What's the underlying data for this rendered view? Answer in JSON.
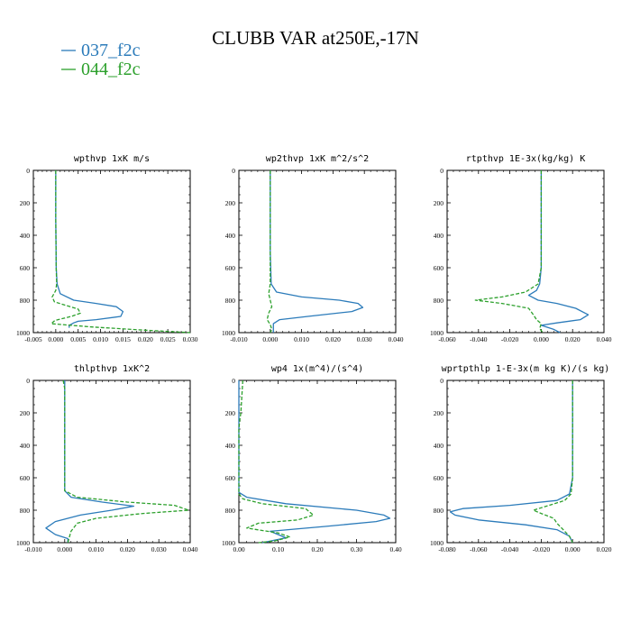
{
  "figure": {
    "title": "CLUBB VAR at250E,-17N",
    "legend": [
      {
        "label": "037_f2c",
        "color": "#2b7bba"
      },
      {
        "label": "044_f2c",
        "color": "#2ca02c"
      }
    ]
  },
  "chart_data": [
    {
      "type": "line",
      "title": "wpthvp  1xK m/s",
      "xlim": [
        -0.005,
        0.03
      ],
      "ylim": [
        1000,
        0
      ],
      "xticks": [
        "-0.005",
        "0.000",
        "0.005",
        "0.010",
        "0.015",
        "0.020",
        "0.025",
        "0.030"
      ],
      "yticks": [
        "0",
        "200",
        "400",
        "600",
        "800",
        "1000"
      ],
      "series": [
        {
          "name": "037_f2c",
          "color": "#2b7bba",
          "style": "solid",
          "x": [
            0.0,
            0.0,
            0.0001,
            0.0003,
            0.001,
            0.004,
            0.009,
            0.0135,
            0.015,
            0.0145,
            0.009,
            0.005,
            0.004,
            0.003,
            0.003
          ],
          "y": [
            0,
            300,
            600,
            700,
            760,
            800,
            820,
            840,
            870,
            900,
            920,
            930,
            940,
            955,
            970
          ]
        },
        {
          "name": "044_f2c",
          "color": "#2ca02c",
          "style": "dashed",
          "x": [
            0.0,
            0.0,
            0.0001,
            0.0002,
            0.0,
            -0.0008,
            -0.0003,
            0.002,
            0.005,
            0.0055,
            0.0035,
            -0.0002,
            -0.001,
            0.008,
            0.02,
            0.03
          ],
          "y": [
            0,
            300,
            600,
            700,
            740,
            780,
            810,
            830,
            855,
            880,
            900,
            925,
            945,
            965,
            985,
            1000
          ]
        }
      ]
    },
    {
      "type": "line",
      "title": "wp2thvp  1xK m^2/s^2",
      "xlim": [
        -0.01,
        0.04
      ],
      "ylim": [
        1000,
        0
      ],
      "xticks": [
        "-0.010",
        "0.000",
        "0.010",
        "0.020",
        "0.030",
        "0.040"
      ],
      "yticks": [
        "0",
        "200",
        "400",
        "600",
        "800",
        "1000"
      ],
      "series": [
        {
          "name": "037_f2c",
          "color": "#2b7bba",
          "style": "solid",
          "x": [
            0.0,
            0.0,
            0.0003,
            0.002,
            0.01,
            0.022,
            0.028,
            0.0295,
            0.026,
            0.012,
            0.003,
            0.001,
            0.001
          ],
          "y": [
            0,
            500,
            700,
            750,
            780,
            800,
            820,
            845,
            870,
            900,
            920,
            945,
            1000
          ]
        },
        {
          "name": "044_f2c",
          "color": "#2ca02c",
          "style": "dashed",
          "x": [
            0.0,
            0.0,
            0.0,
            -0.0005,
            0.0,
            0.0005,
            -0.0005,
            -0.001,
            0.0,
            0.0005,
            0.0
          ],
          "y": [
            0,
            500,
            700,
            760,
            800,
            840,
            880,
            920,
            950,
            980,
            1000
          ]
        }
      ]
    },
    {
      "type": "line",
      "title": "rtpthvp  1E-3x(kg/kg) K",
      "xlim": [
        -0.06,
        0.04
      ],
      "ylim": [
        1000,
        0
      ],
      "xticks": [
        "-0.060",
        "-0.040",
        "-0.020",
        "0.000",
        "0.020",
        "0.040"
      ],
      "yticks": [
        "0",
        "200",
        "400",
        "600",
        "800",
        "1000"
      ],
      "series": [
        {
          "name": "037_f2c",
          "color": "#2b7bba",
          "style": "solid",
          "x": [
            0.0,
            0.0,
            -0.001,
            -0.003,
            -0.008,
            -0.002,
            0.01,
            0.022,
            0.03,
            0.025,
            0.01,
            0.0,
            0.008,
            0.012
          ],
          "y": [
            0,
            600,
            700,
            740,
            770,
            800,
            820,
            850,
            890,
            920,
            940,
            955,
            980,
            1000
          ]
        },
        {
          "name": "044_f2c",
          "color": "#2ca02c",
          "style": "dashed",
          "x": [
            0.0,
            0.0,
            -0.002,
            -0.01,
            -0.025,
            -0.042,
            -0.025,
            -0.008,
            -0.005,
            -0.003,
            0.0,
            -0.001,
            0.001
          ],
          "y": [
            0,
            600,
            700,
            750,
            780,
            800,
            820,
            850,
            890,
            920,
            945,
            975,
            1000
          ]
        }
      ]
    },
    {
      "type": "line",
      "title": "thlpthvp  1xK^2",
      "xlim": [
        -0.01,
        0.04
      ],
      "ylim": [
        1000,
        0
      ],
      "xticks": [
        "-0.010",
        "0.000",
        "0.010",
        "0.020",
        "0.030",
        "0.040"
      ],
      "yticks": [
        "0",
        "200",
        "400",
        "600",
        "800",
        "1000"
      ],
      "series": [
        {
          "name": "037_f2c",
          "color": "#2b7bba",
          "style": "solid",
          "x": [
            0.0,
            0.0,
            0.0,
            0.002,
            0.012,
            0.022,
            0.015,
            0.005,
            -0.003,
            -0.006,
            -0.003,
            0.001,
            0.001
          ],
          "y": [
            0,
            50,
            680,
            720,
            750,
            775,
            800,
            830,
            870,
            910,
            950,
            975,
            1000
          ]
        },
        {
          "name": "044_f2c",
          "color": "#2ca02c",
          "style": "dashed",
          "x": [
            -0.0005,
            0.0,
            0.0,
            0.004,
            0.02,
            0.035,
            0.0395,
            0.025,
            0.01,
            0.004,
            0.002,
            0.001
          ],
          "y": [
            0,
            50,
            680,
            720,
            750,
            770,
            800,
            820,
            850,
            880,
            930,
            1000
          ]
        }
      ]
    },
    {
      "type": "line",
      "title": "wp4  1x(m^4)/(s^4)",
      "xlim": [
        0.0,
        0.4
      ],
      "ylim": [
        1000,
        0
      ],
      "xticks": [
        "0.00",
        "0.10",
        "0.20",
        "0.30",
        "0.40"
      ],
      "yticks": [
        "0",
        "200",
        "400",
        "600",
        "800",
        "1000"
      ],
      "series": [
        {
          "name": "037_f2c",
          "color": "#2b7bba",
          "style": "solid",
          "x": [
            0.0,
            0.0,
            0.0,
            0.02,
            0.12,
            0.3,
            0.37,
            0.385,
            0.35,
            0.22,
            0.08,
            0.1,
            0.12,
            0.06
          ],
          "y": [
            0,
            100,
            690,
            720,
            760,
            800,
            830,
            850,
            870,
            900,
            930,
            950,
            970,
            1000
          ]
        },
        {
          "name": "044_f2c",
          "color": "#2ca02c",
          "style": "dashed",
          "x": [
            0.01,
            0.005,
            0.002,
            0.0,
            0.0,
            0.01,
            0.06,
            0.17,
            0.19,
            0.15,
            0.05,
            0.02,
            0.1,
            0.13,
            0.09,
            0.05
          ],
          "y": [
            0,
            200,
            250,
            300,
            700,
            730,
            760,
            790,
            830,
            860,
            880,
            910,
            940,
            965,
            990,
            1000
          ]
        }
      ]
    },
    {
      "type": "line",
      "title": "wprtpthlp  1-E-3x(m kg K)/(s kg)",
      "xlim": [
        -0.08,
        0.02
      ],
      "ylim": [
        1000,
        0
      ],
      "xticks": [
        "-0.080",
        "-0.060",
        "-0.040",
        "-0.020",
        "0.000",
        "0.020"
      ],
      "yticks": [
        "0",
        "200",
        "400",
        "600",
        "800",
        "1000"
      ],
      "series": [
        {
          "name": "037_f2c",
          "color": "#2b7bba",
          "style": "solid",
          "x": [
            0.0,
            0.0,
            -0.002,
            -0.01,
            -0.04,
            -0.07,
            -0.078,
            -0.075,
            -0.06,
            -0.03,
            -0.01,
            -0.002,
            0.0
          ],
          "y": [
            0,
            600,
            700,
            740,
            770,
            790,
            810,
            830,
            860,
            890,
            920,
            960,
            1000
          ]
        },
        {
          "name": "044_f2c",
          "color": "#2ca02c",
          "style": "dashed",
          "x": [
            0.0,
            0.0,
            -0.001,
            -0.005,
            -0.015,
            -0.025,
            -0.02,
            -0.012,
            -0.01,
            -0.006,
            -0.002,
            0.0
          ],
          "y": [
            0,
            600,
            700,
            740,
            770,
            800,
            820,
            850,
            880,
            920,
            960,
            1000
          ]
        }
      ]
    }
  ]
}
